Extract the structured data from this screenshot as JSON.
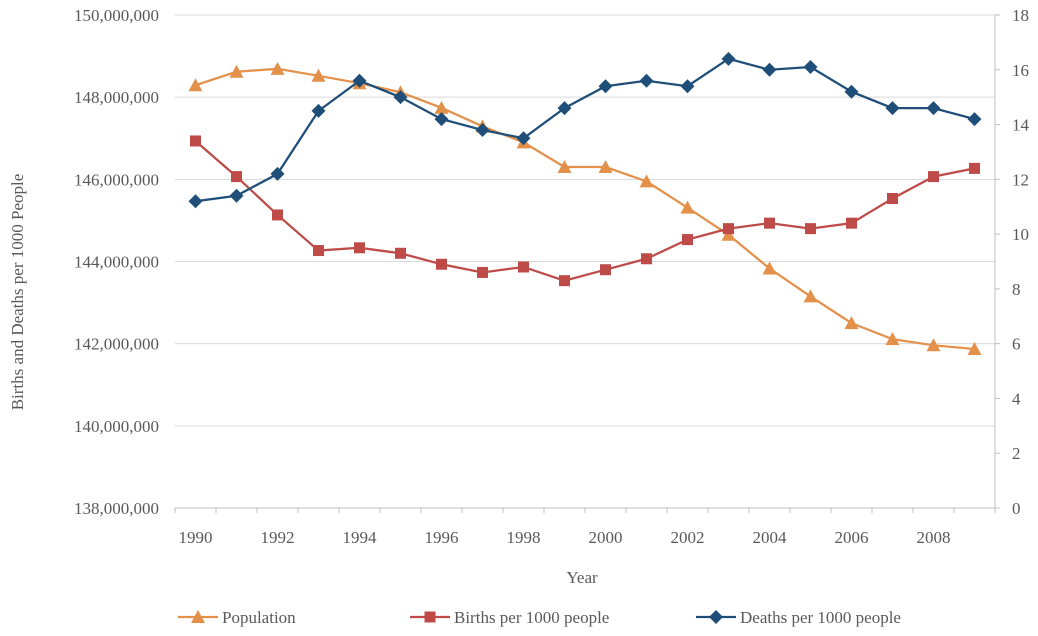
{
  "chart_data": {
    "type": "line",
    "title": "",
    "xlabel": "Year",
    "ylabel": "Births and Deaths per 1000 People",
    "x": [
      1990,
      1991,
      1992,
      1993,
      1994,
      1995,
      1996,
      1997,
      1998,
      1999,
      2000,
      2001,
      2002,
      2003,
      2004,
      2005,
      2006,
      2007,
      2008,
      2009
    ],
    "x_ticks": [
      "1990",
      "1992",
      "1994",
      "1996",
      "1998",
      "2000",
      "2002",
      "2004",
      "2006",
      "2008"
    ],
    "y_left": {
      "range": [
        138000000,
        150000000
      ],
      "ticks": [
        "138,000,000",
        "140,000,000",
        "142,000,000",
        "144,000,000",
        "146,000,000",
        "148,000,000",
        "150,000,000"
      ]
    },
    "y_right": {
      "range": [
        0,
        18
      ],
      "ticks": [
        "0",
        "2",
        "4",
        "6",
        "8",
        "10",
        "12",
        "14",
        "16",
        "18"
      ]
    },
    "grid": true,
    "legend_position": "bottom",
    "series": [
      {
        "name": "Population",
        "axis": "left",
        "marker": "triangle",
        "color": "#E3914A",
        "values": [
          148290000,
          148620000,
          148690000,
          148520000,
          148340000,
          148120000,
          147740000,
          147290000,
          146900000,
          146300000,
          146300000,
          145950000,
          145310000,
          144650000,
          143830000,
          143150000,
          142500000,
          142110000,
          141960000,
          141870000
        ]
      },
      {
        "name": "Births per 1000 people",
        "axis": "right",
        "marker": "square",
        "color": "#BE4B48",
        "values": [
          13.4,
          12.1,
          10.7,
          9.4,
          9.5,
          9.3,
          8.9,
          8.6,
          8.8,
          8.3,
          8.7,
          9.1,
          9.8,
          10.2,
          10.4,
          10.2,
          10.4,
          11.3,
          12.1,
          12.4
        ]
      },
      {
        "name": "Deaths per 1000 people",
        "axis": "right",
        "marker": "diamond",
        "color": "#1F4E79",
        "values": [
          11.2,
          11.4,
          12.2,
          14.5,
          15.6,
          15.0,
          14.2,
          13.8,
          13.5,
          14.6,
          15.4,
          15.6,
          15.4,
          16.4,
          16.0,
          16.1,
          15.2,
          14.6,
          14.6,
          14.2
        ]
      }
    ]
  }
}
